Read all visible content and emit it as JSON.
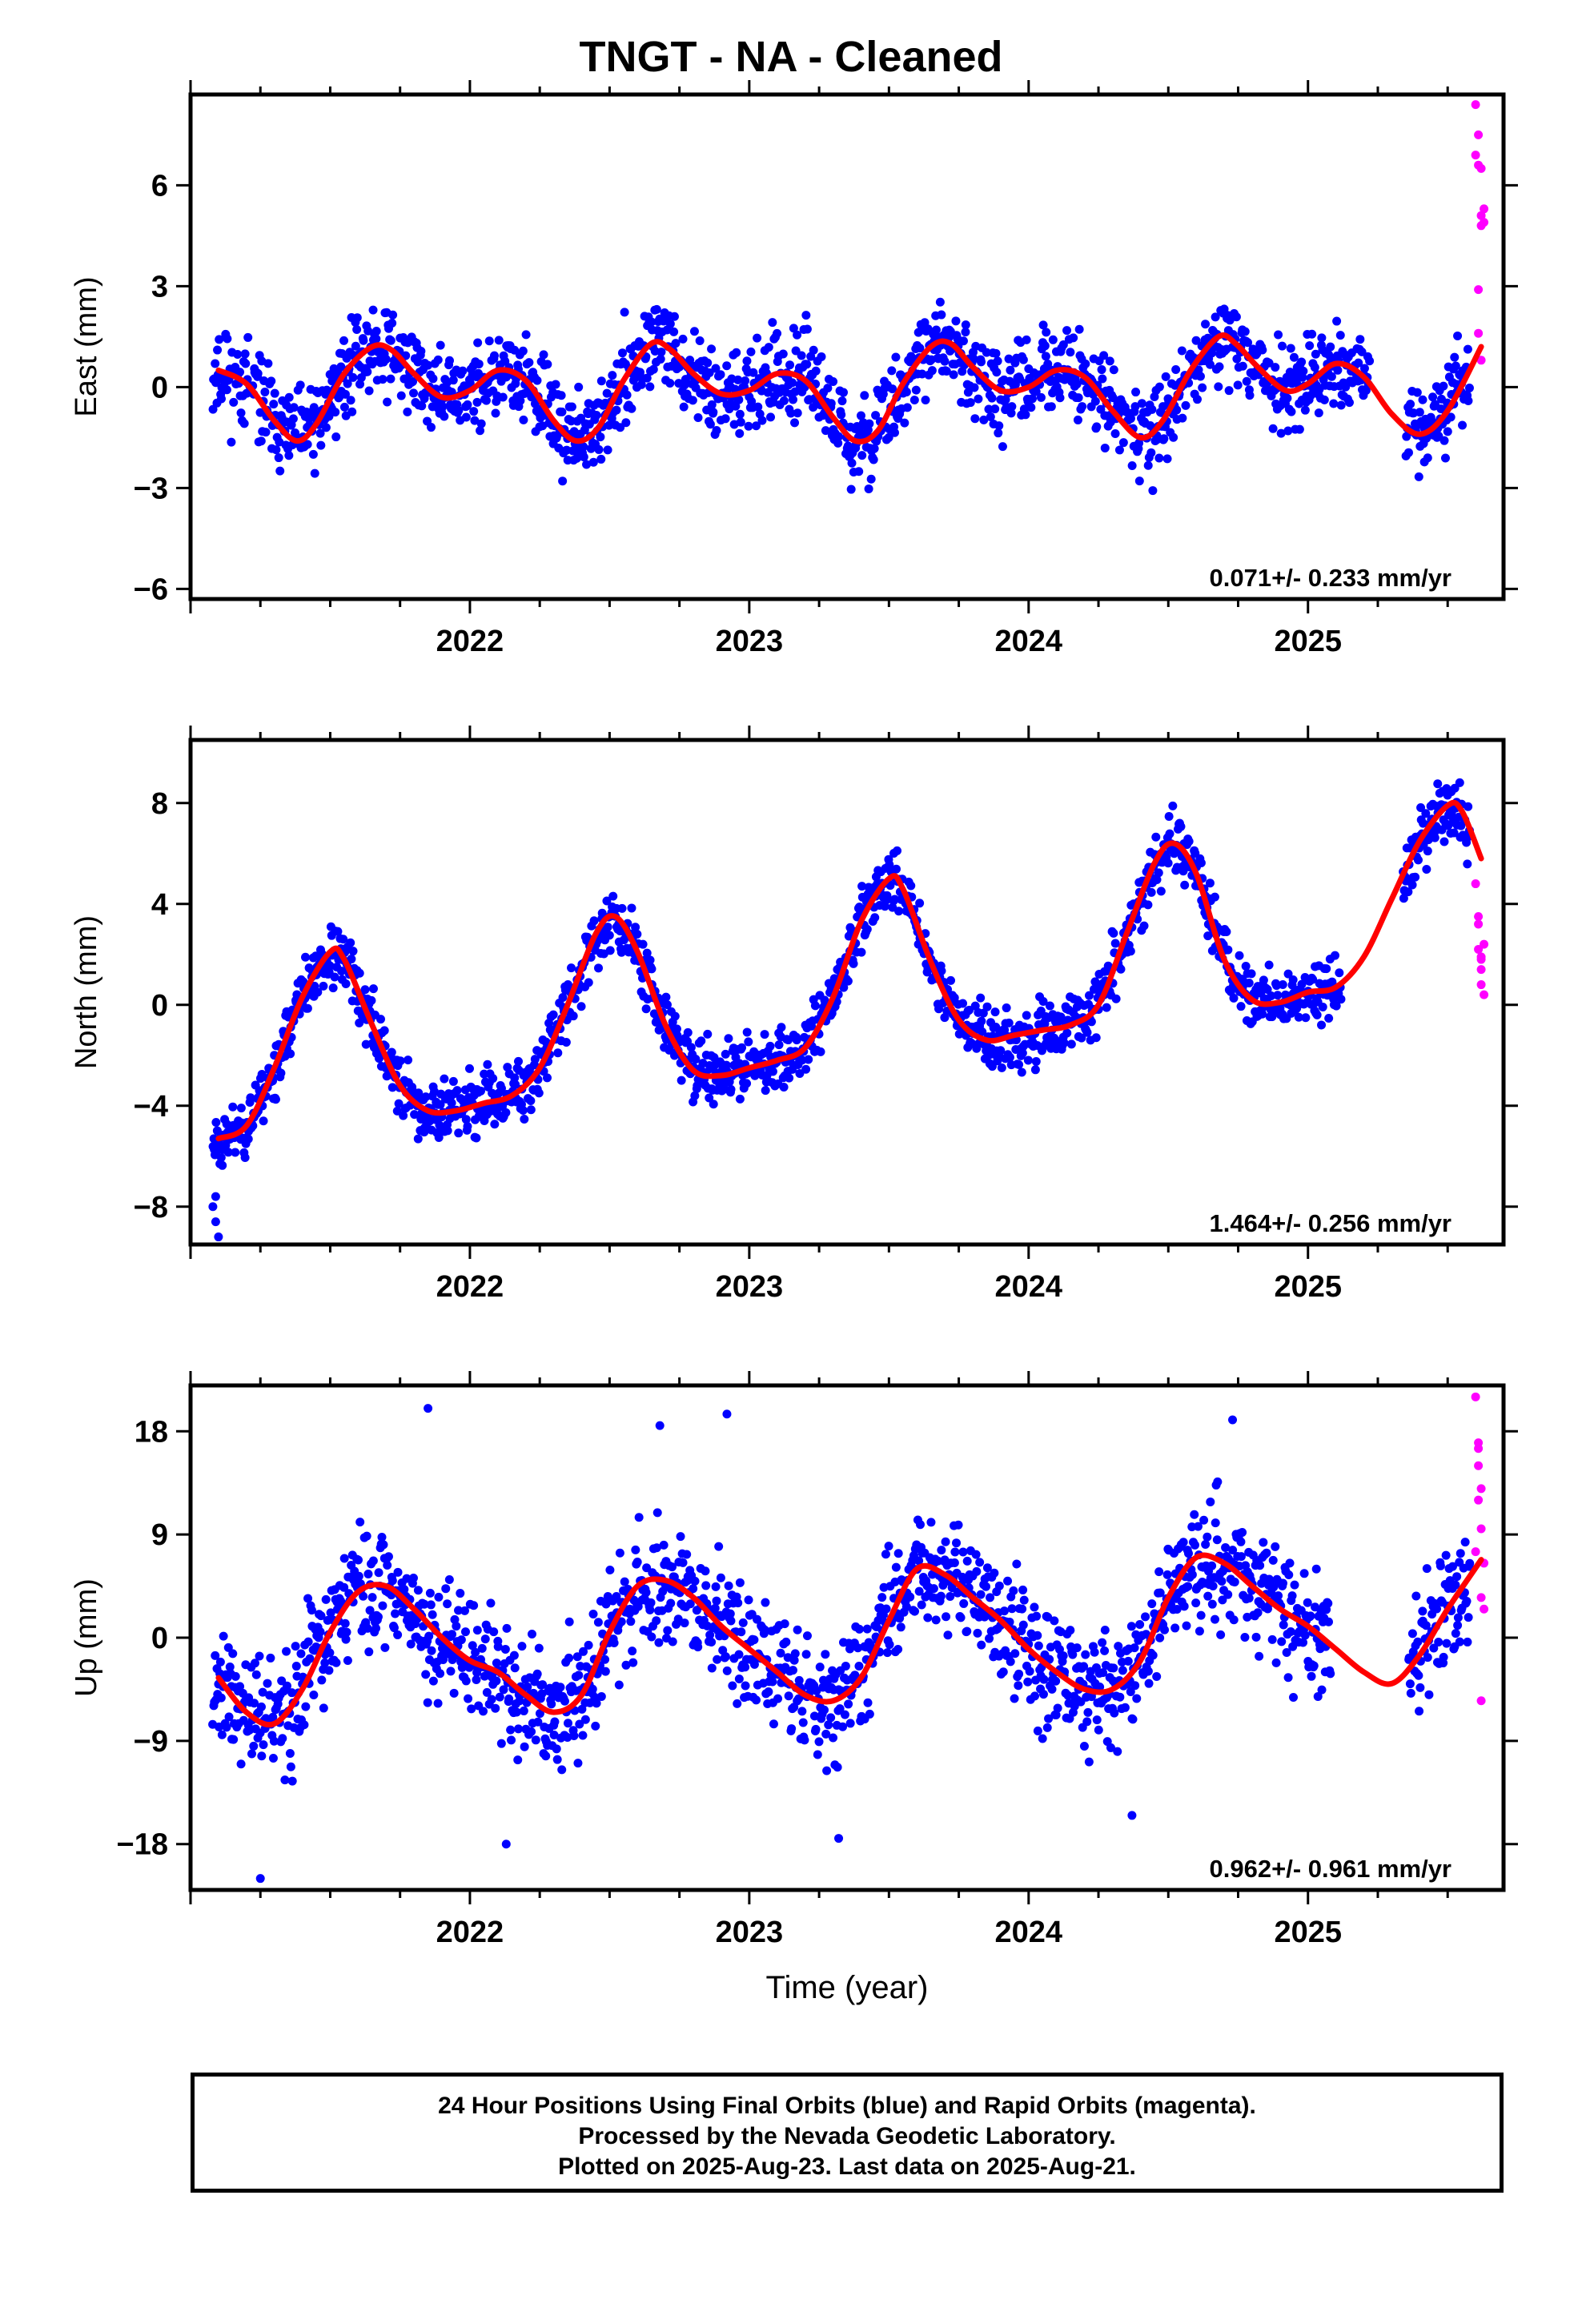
{
  "title": "TNGT  - NA - Cleaned",
  "footer": {
    "line1": "24 Hour Positions Using Final Orbits (blue) and Rapid Orbits (magenta).",
    "line2": "Processed by the Nevada Geodetic Laboratory.",
    "line3": "Plotted on 2025-Aug-23. Last data on 2025-Aug-21."
  },
  "colors": {
    "final": "#0000ff",
    "rapid": "#ff00ff",
    "fit": "#ff0000",
    "axis": "#000000"
  },
  "chart_data": [
    {
      "type": "scatter",
      "ylabel": "East (mm)",
      "xlabel": "",
      "xlim": [
        2021.0,
        2025.7
      ],
      "ylim": [
        -6.3,
        8.7
      ],
      "yticks": [
        -6,
        -3,
        0,
        3,
        6
      ],
      "xticks": [
        2022,
        2023,
        2024,
        2025
      ],
      "rate_label": "0.071+/- 0.233 mm/yr",
      "fit_curve": {
        "x": [
          2021.1,
          2021.2,
          2021.3,
          2021.38,
          2021.45,
          2021.55,
          2021.65,
          2021.72,
          2021.8,
          2021.9,
          2022.0,
          2022.1,
          2022.2,
          2022.3,
          2022.38,
          2022.46,
          2022.55,
          2022.65,
          2022.72,
          2022.8,
          2022.9,
          2023.0,
          2023.1,
          2023.2,
          2023.3,
          2023.38,
          2023.46,
          2023.55,
          2023.65,
          2023.72,
          2023.8,
          2023.9,
          2024.0,
          2024.1,
          2024.2,
          2024.3,
          2024.4,
          2024.48,
          2024.58,
          2024.68,
          2024.74,
          2024.82,
          2024.92,
          2025.0,
          2025.1,
          2025.2,
          2025.3,
          2025.4,
          2025.5,
          2025.62
        ],
        "y": [
          0.5,
          0.1,
          -1.0,
          -1.6,
          -1.1,
          0.4,
          1.2,
          1.1,
          0.4,
          -0.3,
          -0.1,
          0.5,
          0.2,
          -1.0,
          -1.6,
          -1.2,
          0.2,
          1.3,
          1.1,
          0.4,
          -0.2,
          -0.1,
          0.4,
          0.2,
          -0.9,
          -1.6,
          -1.3,
          0.1,
          1.2,
          1.3,
          0.6,
          -0.1,
          0.0,
          0.5,
          0.3,
          -0.7,
          -1.5,
          -1.0,
          0.5,
          1.5,
          1.3,
          0.6,
          -0.1,
          0.1,
          0.7,
          0.3,
          -0.8,
          -1.4,
          -0.7,
          1.2
        ]
      },
      "series": [
        {
          "name": "Final Orbits",
          "source": "final",
          "seed": 11,
          "sigma": 0.9,
          "x_start": 2021.08,
          "x_end": 2025.22,
          "gaps": [
            [
              2025.23,
              2025.34
            ]
          ],
          "tail": [
            2025.35,
            2025.58
          ]
        },
        {
          "name": "Rapid Orbits",
          "source": "rapid",
          "x": [
            2025.6,
            2025.6,
            2025.61,
            2025.61,
            2025.62,
            2025.62,
            2025.62,
            2025.63,
            2025.63,
            2025.61,
            2025.62,
            2025.61
          ],
          "y": [
            8.4,
            6.9,
            7.5,
            6.6,
            5.1,
            4.8,
            6.5,
            5.3,
            4.9,
            2.9,
            0.8,
            1.6
          ]
        }
      ]
    },
    {
      "type": "scatter",
      "ylabel": "North (mm)",
      "xlabel": "",
      "xlim": [
        2021.0,
        2025.7
      ],
      "ylim": [
        -9.5,
        10.5
      ],
      "yticks": [
        -8,
        -4,
        0,
        4,
        8
      ],
      "xticks": [
        2022,
        2023,
        2024,
        2025
      ],
      "rate_label": "1.464+/- 0.256 mm/yr",
      "fit_curve": {
        "x": [
          2021.1,
          2021.2,
          2021.3,
          2021.4,
          2021.5,
          2021.55,
          2021.65,
          2021.75,
          2021.85,
          2021.95,
          2022.05,
          2022.15,
          2022.25,
          2022.35,
          2022.45,
          2022.52,
          2022.6,
          2022.7,
          2022.8,
          2022.9,
          2023.0,
          2023.1,
          2023.2,
          2023.3,
          2023.4,
          2023.5,
          2023.55,
          2023.65,
          2023.75,
          2023.85,
          2023.95,
          2024.05,
          2024.15,
          2024.25,
          2024.35,
          2024.45,
          2024.52,
          2024.6,
          2024.7,
          2024.8,
          2024.9,
          2025.0,
          2025.1,
          2025.2,
          2025.3,
          2025.4,
          2025.5,
          2025.55,
          2025.62
        ],
        "y": [
          -5.3,
          -4.8,
          -2.5,
          0.3,
          2.1,
          1.8,
          -0.8,
          -3.2,
          -4.2,
          -4.2,
          -3.9,
          -3.6,
          -2.5,
          0.0,
          2.8,
          3.5,
          2.1,
          -0.8,
          -2.6,
          -2.8,
          -2.5,
          -2.2,
          -1.7,
          0.3,
          3.3,
          5.0,
          4.6,
          1.7,
          -0.6,
          -1.4,
          -1.2,
          -1.0,
          -0.8,
          0.0,
          2.8,
          5.6,
          6.4,
          5.2,
          1.8,
          0.2,
          0.1,
          0.5,
          0.7,
          1.9,
          4.2,
          6.5,
          7.9,
          7.7,
          5.8
        ]
      },
      "series": [
        {
          "name": "Final Orbits",
          "source": "final",
          "seed": 23,
          "sigma": 0.85,
          "x_start": 2021.08,
          "x_end": 2025.12,
          "gaps": [
            [
              2025.13,
              2025.33
            ]
          ],
          "tail": [
            2025.34,
            2025.58
          ],
          "extra": [
            [
              2021.08,
              -8.0
            ],
            [
              2021.09,
              -8.6
            ],
            [
              2021.1,
              -9.2
            ],
            [
              2021.09,
              -7.6
            ]
          ]
        },
        {
          "name": "Rapid Orbits",
          "source": "rapid",
          "x": [
            2025.6,
            2025.61,
            2025.61,
            2025.62,
            2025.62,
            2025.62,
            2025.63,
            2025.63,
            2025.61,
            2025.62
          ],
          "y": [
            4.8,
            3.2,
            2.2,
            1.8,
            1.4,
            0.8,
            0.4,
            2.4,
            3.5,
            1.9
          ]
        }
      ]
    },
    {
      "type": "scatter",
      "ylabel": "Up (mm)",
      "xlabel": "Time (year)",
      "xlim": [
        2021.0,
        2025.7
      ],
      "ylim": [
        -22,
        22
      ],
      "yticks": [
        -18,
        -9,
        0,
        9,
        18
      ],
      "xticks": [
        2022,
        2023,
        2024,
        2025
      ],
      "rate_label": "0.962+/- 0.961 mm/yr",
      "fit_curve": {
        "x": [
          2021.1,
          2021.2,
          2021.3,
          2021.4,
          2021.5,
          2021.6,
          2021.7,
          2021.8,
          2021.9,
          2022.0,
          2022.1,
          2022.2,
          2022.3,
          2022.4,
          2022.5,
          2022.6,
          2022.7,
          2022.8,
          2022.9,
          2023.0,
          2023.1,
          2023.2,
          2023.3,
          2023.4,
          2023.5,
          2023.6,
          2023.7,
          2023.8,
          2023.9,
          2024.0,
          2024.1,
          2024.2,
          2024.3,
          2024.4,
          2024.5,
          2024.6,
          2024.7,
          2024.8,
          2024.9,
          2025.0,
          2025.1,
          2025.2,
          2025.3,
          2025.4,
          2025.5,
          2025.62
        ],
        "y": [
          -3.5,
          -6.5,
          -7.5,
          -4.5,
          0.5,
          4.0,
          4.5,
          2.5,
          0.0,
          -2.0,
          -3.0,
          -5.0,
          -6.5,
          -5.0,
          0.5,
          4.5,
          5.0,
          3.5,
          1.0,
          -1.0,
          -3.0,
          -5.0,
          -5.5,
          -3.5,
          1.5,
          6.0,
          5.5,
          3.5,
          1.5,
          -1.0,
          -3.0,
          -4.5,
          -4.5,
          -2.0,
          3.5,
          7.0,
          6.5,
          4.5,
          2.5,
          1.0,
          -1.0,
          -3.0,
          -4.0,
          -1.5,
          2.5,
          6.8
        ]
      },
      "series": [
        {
          "name": "Final Orbits",
          "source": "final",
          "seed": 37,
          "sigma": 3.6,
          "x_start": 2021.08,
          "x_end": 2025.08,
          "gaps": [
            [
              2025.09,
              2025.35
            ]
          ],
          "tail": [
            2025.36,
            2025.58
          ],
          "extra": [
            [
              2021.85,
              20.0
            ],
            [
              2022.68,
              18.5
            ],
            [
              2022.92,
              19.5
            ],
            [
              2024.73,
              19.0
            ],
            [
              2021.25,
              -21.0
            ],
            [
              2022.13,
              -18.0
            ],
            [
              2024.37,
              -15.5
            ],
            [
              2023.32,
              -17.5
            ]
          ]
        },
        {
          "name": "Rapid Orbits",
          "source": "rapid",
          "x": [
            2025.6,
            2025.61,
            2025.61,
            2025.62,
            2025.62,
            2025.63,
            2025.62,
            2025.61,
            2025.63,
            2025.62,
            2025.61,
            2025.6
          ],
          "y": [
            21.0,
            16.5,
            15.0,
            13.0,
            9.5,
            6.5,
            3.5,
            17.0,
            2.5,
            -5.5,
            12.0,
            7.5
          ]
        }
      ]
    }
  ]
}
